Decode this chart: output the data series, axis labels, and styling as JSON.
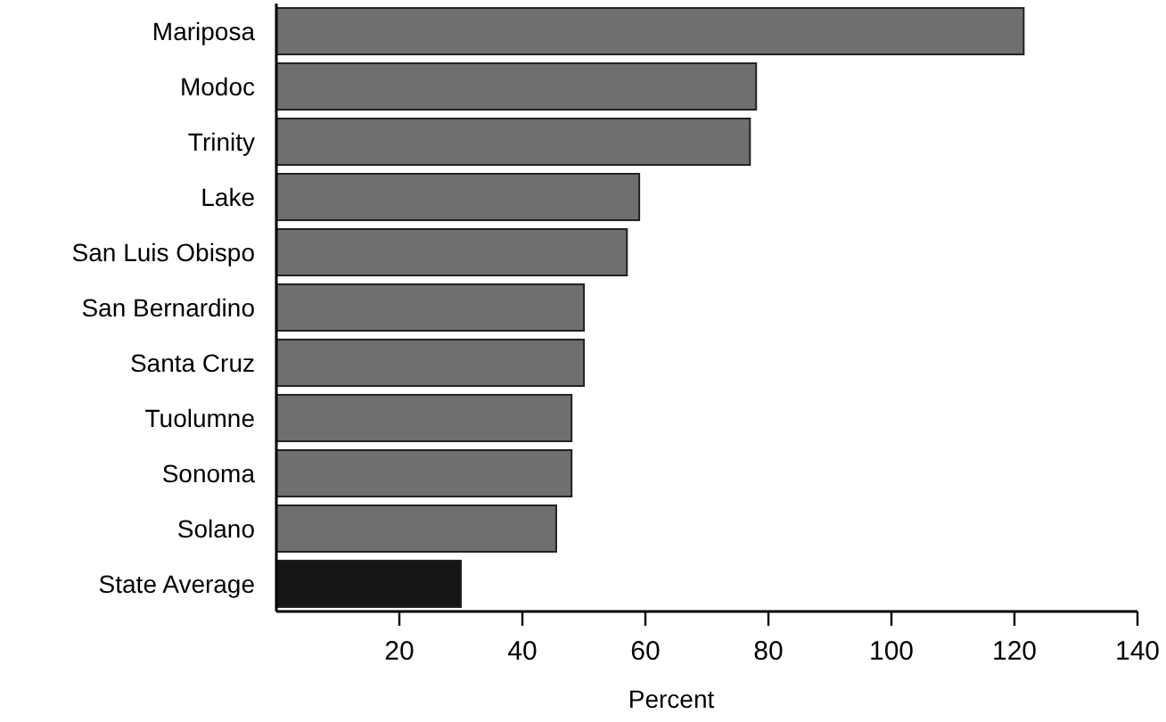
{
  "chart_data": {
    "type": "bar",
    "orientation": "horizontal",
    "xlabel": "Percent",
    "categories": [
      "Mariposa",
      "Modoc",
      "Trinity",
      "Lake",
      "San Luis Obispo",
      "San Bernardino",
      "Santa Cruz",
      "Tuolumne",
      "Sonoma",
      "Solano",
      "State Average"
    ],
    "values": [
      121.5,
      78,
      77,
      59,
      57,
      50,
      50,
      48,
      48,
      45.5,
      30
    ],
    "colors": [
      "#6f6f6f",
      "#6f6f6f",
      "#6f6f6f",
      "#6f6f6f",
      "#6f6f6f",
      "#6f6f6f",
      "#6f6f6f",
      "#6f6f6f",
      "#6f6f6f",
      "#6f6f6f",
      "#151515"
    ],
    "xlim": [
      0,
      140
    ],
    "xticks": [
      20,
      40,
      60,
      80,
      100,
      120,
      140
    ],
    "grid": false
  }
}
